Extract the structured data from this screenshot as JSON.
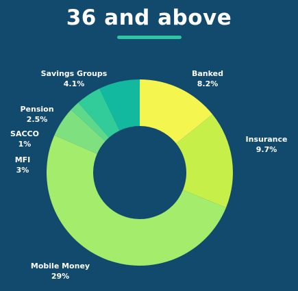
{
  "chart_data": {
    "type": "pie",
    "title": "36 and above",
    "donut": true,
    "categories": [
      "Banked",
      "Insurance",
      "Mobile Money",
      "MFI",
      "SACCO",
      "Pension",
      "Savings Groups"
    ],
    "values": [
      8.2,
      9.7,
      29,
      3,
      1,
      2.5,
      4.1
    ],
    "value_labels": [
      "8.2%",
      "9.7%",
      "29%",
      "3%",
      "1%",
      "2.5%",
      "4.1%"
    ],
    "colors": [
      "#f5f550",
      "#c6ef4a",
      "#a4ec6c",
      "#7fe07f",
      "#5ed88b",
      "#32cc9a",
      "#12b99e"
    ],
    "legend": "none"
  },
  "style": {
    "background": "#124a6e",
    "underline_color": "#2ec4a6"
  }
}
